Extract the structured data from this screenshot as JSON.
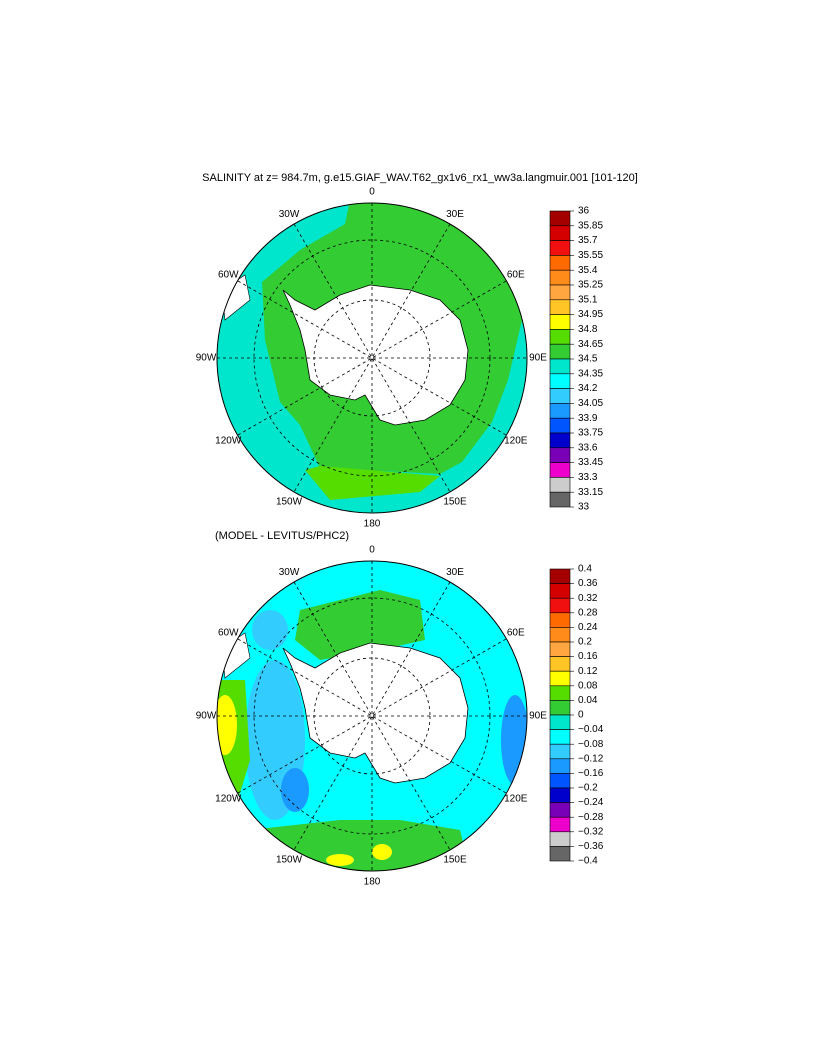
{
  "title": "SALINITY at z= 984.7m, g.e15.GIAF_WAV.T62_gx1v6_rx1_ww3a.langmuir.001 [101-120]",
  "maps": [
    {
      "lon_labels": [
        "0",
        "30E",
        "60E",
        "90E",
        "120E",
        "150E",
        "180",
        "150W",
        "120W",
        "90W",
        "60W",
        "30W"
      ],
      "colorbar": {
        "levels": [
          36,
          35.85,
          35.7,
          35.55,
          35.4,
          35.25,
          35.1,
          34.95,
          34.8,
          34.65,
          34.5,
          34.35,
          34.2,
          34.05,
          33.9,
          33.75,
          33.6,
          33.45,
          33.3,
          33.15,
          33
        ],
        "colors": [
          "#a50000",
          "#d40000",
          "#f01010",
          "#ff6a00",
          "#ff8c1a",
          "#ffa640",
          "#ffc425",
          "#ffff00",
          "#55dd00",
          "#33cc33",
          "#00e6cc",
          "#00ffff",
          "#33ccff",
          "#1a99ff",
          "#0055ff",
          "#0000cc",
          "#7a00b8",
          "#ee00cc",
          "#cccccc",
          "#666666"
        ]
      }
    },
    {
      "label": "(MODEL - LEVITUS/PHC2)",
      "lon_labels": [
        "0",
        "30E",
        "60E",
        "90E",
        "120E",
        "150E",
        "180",
        "150W",
        "120W",
        "90W",
        "60W",
        "30W"
      ],
      "colorbar": {
        "levels": [
          0.4,
          0.36,
          0.32,
          0.28,
          0.24,
          0.2,
          0.16,
          0.12,
          0.08,
          0.04,
          0,
          {
            "value": -0.04,
            "label": "−0.04"
          },
          {
            "value": -0.08,
            "label": "−0.08"
          },
          {
            "value": -0.12,
            "label": "−0.12"
          },
          {
            "value": -0.16,
            "label": "−0.16"
          },
          {
            "value": -0.2,
            "label": "−0.2"
          },
          {
            "value": -0.24,
            "label": "−0.24"
          },
          {
            "value": -0.28,
            "label": "−0.28"
          },
          {
            "value": -0.32,
            "label": "−0.32"
          },
          {
            "value": -0.36,
            "label": "−0.36"
          },
          {
            "value": -0.4,
            "label": "−0.4"
          }
        ],
        "colors": [
          "#a50000",
          "#d40000",
          "#f01010",
          "#ff6a00",
          "#ff8c1a",
          "#ffa640",
          "#ffc425",
          "#ffff00",
          "#55dd00",
          "#33cc33",
          "#00e6cc",
          "#00ffff",
          "#33ccff",
          "#1a99ff",
          "#0055ff",
          "#0000cc",
          "#7a00b8",
          "#ee00cc",
          "#cccccc",
          "#666666"
        ]
      }
    }
  ]
}
